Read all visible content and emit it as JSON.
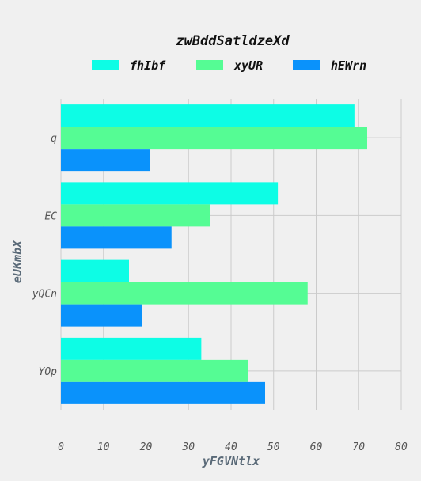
{
  "chart_data": {
    "type": "bar",
    "orientation": "horizontal",
    "title": "zwBddSatldzeXd",
    "xlabel": "yFGVNtlx",
    "ylabel": "eUKmbX",
    "categories": [
      "q",
      "EC",
      "yQCn",
      "YOp"
    ],
    "series": [
      {
        "name": "fhIbf",
        "color": "#0dfde5",
        "values": [
          69,
          51,
          16,
          33
        ]
      },
      {
        "name": "xyUR",
        "color": "#55fc94",
        "values": [
          72,
          35,
          58,
          44
        ]
      },
      {
        "name": "hEWrn",
        "color": "#0a92fb",
        "values": [
          21,
          26,
          19,
          48
        ]
      }
    ],
    "xlim": [
      0,
      80
    ],
    "xticks": [
      "0",
      "10",
      "20",
      "30",
      "40",
      "50",
      "60",
      "70",
      "80"
    ],
    "grid": true,
    "legend_position": "top"
  }
}
